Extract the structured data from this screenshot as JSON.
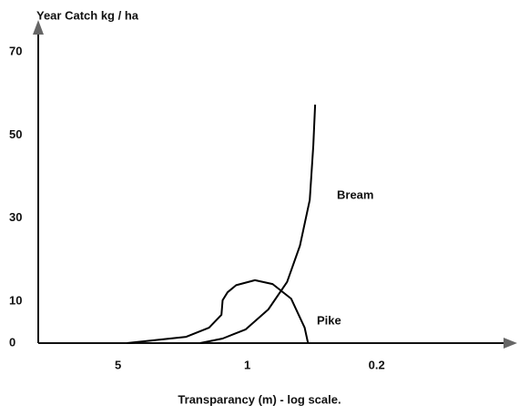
{
  "chart_data": {
    "type": "line",
    "y_axis_label": "Year Catch kg / ha",
    "x_axis_label": "Transparancy (m) - log scale.",
    "x_log_scale": true,
    "xlim": [
      13.5,
      0.036
    ],
    "xticks": [
      5,
      1,
      0.2
    ],
    "ylim": [
      0,
      75
    ],
    "yticks": [
      0,
      10,
      30,
      50,
      70
    ],
    "series": [
      {
        "name": "Bream",
        "color": "#000000",
        "x": [
          1.8,
          1.36,
          1.02,
          0.77,
          0.61,
          0.52,
          0.46,
          0.44,
          0.43
        ],
        "values": [
          0,
          1.1,
          3.3,
          8.1,
          14.7,
          23.4,
          34.4,
          47.5,
          57.3
        ]
      },
      {
        "name": "Pike",
        "color": "#000000",
        "x": [
          4.47,
          2.14,
          1.61,
          1.38,
          1.36,
          1.28,
          1.15,
          0.91,
          0.73,
          0.58,
          0.49,
          0.47
        ],
        "values": [
          0,
          1.5,
          3.7,
          6.8,
          10.3,
          12.2,
          13.9,
          15.1,
          14.2,
          10.7,
          3.7,
          0
        ]
      }
    ]
  }
}
